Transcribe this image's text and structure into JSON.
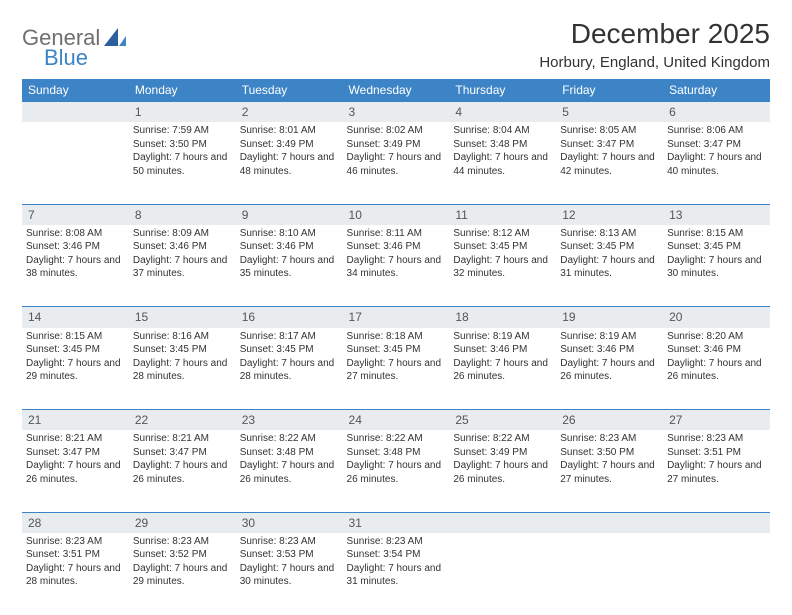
{
  "logo": {
    "text1": "General",
    "text2": "Blue",
    "icon_color": "#2b5f9e"
  },
  "title": "December 2025",
  "location": "Horbury, England, United Kingdom",
  "header_bg": "#3d84c6",
  "daynum_bg": "#e8ecef",
  "weekdays": [
    "Sunday",
    "Monday",
    "Tuesday",
    "Wednesday",
    "Thursday",
    "Friday",
    "Saturday"
  ],
  "weeks": [
    {
      "nums": [
        "",
        "1",
        "2",
        "3",
        "4",
        "5",
        "6"
      ],
      "cells": [
        null,
        {
          "sunrise": "Sunrise: 7:59 AM",
          "sunset": "Sunset: 3:50 PM",
          "daylight": "Daylight: 7 hours and 50 minutes."
        },
        {
          "sunrise": "Sunrise: 8:01 AM",
          "sunset": "Sunset: 3:49 PM",
          "daylight": "Daylight: 7 hours and 48 minutes."
        },
        {
          "sunrise": "Sunrise: 8:02 AM",
          "sunset": "Sunset: 3:49 PM",
          "daylight": "Daylight: 7 hours and 46 minutes."
        },
        {
          "sunrise": "Sunrise: 8:04 AM",
          "sunset": "Sunset: 3:48 PM",
          "daylight": "Daylight: 7 hours and 44 minutes."
        },
        {
          "sunrise": "Sunrise: 8:05 AM",
          "sunset": "Sunset: 3:47 PM",
          "daylight": "Daylight: 7 hours and 42 minutes."
        },
        {
          "sunrise": "Sunrise: 8:06 AM",
          "sunset": "Sunset: 3:47 PM",
          "daylight": "Daylight: 7 hours and 40 minutes."
        }
      ]
    },
    {
      "nums": [
        "7",
        "8",
        "9",
        "10",
        "11",
        "12",
        "13"
      ],
      "cells": [
        {
          "sunrise": "Sunrise: 8:08 AM",
          "sunset": "Sunset: 3:46 PM",
          "daylight": "Daylight: 7 hours and 38 minutes."
        },
        {
          "sunrise": "Sunrise: 8:09 AM",
          "sunset": "Sunset: 3:46 PM",
          "daylight": "Daylight: 7 hours and 37 minutes."
        },
        {
          "sunrise": "Sunrise: 8:10 AM",
          "sunset": "Sunset: 3:46 PM",
          "daylight": "Daylight: 7 hours and 35 minutes."
        },
        {
          "sunrise": "Sunrise: 8:11 AM",
          "sunset": "Sunset: 3:46 PM",
          "daylight": "Daylight: 7 hours and 34 minutes."
        },
        {
          "sunrise": "Sunrise: 8:12 AM",
          "sunset": "Sunset: 3:45 PM",
          "daylight": "Daylight: 7 hours and 32 minutes."
        },
        {
          "sunrise": "Sunrise: 8:13 AM",
          "sunset": "Sunset: 3:45 PM",
          "daylight": "Daylight: 7 hours and 31 minutes."
        },
        {
          "sunrise": "Sunrise: 8:15 AM",
          "sunset": "Sunset: 3:45 PM",
          "daylight": "Daylight: 7 hours and 30 minutes."
        }
      ]
    },
    {
      "nums": [
        "14",
        "15",
        "16",
        "17",
        "18",
        "19",
        "20"
      ],
      "cells": [
        {
          "sunrise": "Sunrise: 8:15 AM",
          "sunset": "Sunset: 3:45 PM",
          "daylight": "Daylight: 7 hours and 29 minutes."
        },
        {
          "sunrise": "Sunrise: 8:16 AM",
          "sunset": "Sunset: 3:45 PM",
          "daylight": "Daylight: 7 hours and 28 minutes."
        },
        {
          "sunrise": "Sunrise: 8:17 AM",
          "sunset": "Sunset: 3:45 PM",
          "daylight": "Daylight: 7 hours and 28 minutes."
        },
        {
          "sunrise": "Sunrise: 8:18 AM",
          "sunset": "Sunset: 3:45 PM",
          "daylight": "Daylight: 7 hours and 27 minutes."
        },
        {
          "sunrise": "Sunrise: 8:19 AM",
          "sunset": "Sunset: 3:46 PM",
          "daylight": "Daylight: 7 hours and 26 minutes."
        },
        {
          "sunrise": "Sunrise: 8:19 AM",
          "sunset": "Sunset: 3:46 PM",
          "daylight": "Daylight: 7 hours and 26 minutes."
        },
        {
          "sunrise": "Sunrise: 8:20 AM",
          "sunset": "Sunset: 3:46 PM",
          "daylight": "Daylight: 7 hours and 26 minutes."
        }
      ]
    },
    {
      "nums": [
        "21",
        "22",
        "23",
        "24",
        "25",
        "26",
        "27"
      ],
      "cells": [
        {
          "sunrise": "Sunrise: 8:21 AM",
          "sunset": "Sunset: 3:47 PM",
          "daylight": "Daylight: 7 hours and 26 minutes."
        },
        {
          "sunrise": "Sunrise: 8:21 AM",
          "sunset": "Sunset: 3:47 PM",
          "daylight": "Daylight: 7 hours and 26 minutes."
        },
        {
          "sunrise": "Sunrise: 8:22 AM",
          "sunset": "Sunset: 3:48 PM",
          "daylight": "Daylight: 7 hours and 26 minutes."
        },
        {
          "sunrise": "Sunrise: 8:22 AM",
          "sunset": "Sunset: 3:48 PM",
          "daylight": "Daylight: 7 hours and 26 minutes."
        },
        {
          "sunrise": "Sunrise: 8:22 AM",
          "sunset": "Sunset: 3:49 PM",
          "daylight": "Daylight: 7 hours and 26 minutes."
        },
        {
          "sunrise": "Sunrise: 8:23 AM",
          "sunset": "Sunset: 3:50 PM",
          "daylight": "Daylight: 7 hours and 27 minutes."
        },
        {
          "sunrise": "Sunrise: 8:23 AM",
          "sunset": "Sunset: 3:51 PM",
          "daylight": "Daylight: 7 hours and 27 minutes."
        }
      ]
    },
    {
      "nums": [
        "28",
        "29",
        "30",
        "31",
        "",
        "",
        ""
      ],
      "cells": [
        {
          "sunrise": "Sunrise: 8:23 AM",
          "sunset": "Sunset: 3:51 PM",
          "daylight": "Daylight: 7 hours and 28 minutes."
        },
        {
          "sunrise": "Sunrise: 8:23 AM",
          "sunset": "Sunset: 3:52 PM",
          "daylight": "Daylight: 7 hours and 29 minutes."
        },
        {
          "sunrise": "Sunrise: 8:23 AM",
          "sunset": "Sunset: 3:53 PM",
          "daylight": "Daylight: 7 hours and 30 minutes."
        },
        {
          "sunrise": "Sunrise: 8:23 AM",
          "sunset": "Sunset: 3:54 PM",
          "daylight": "Daylight: 7 hours and 31 minutes."
        },
        null,
        null,
        null
      ]
    }
  ]
}
